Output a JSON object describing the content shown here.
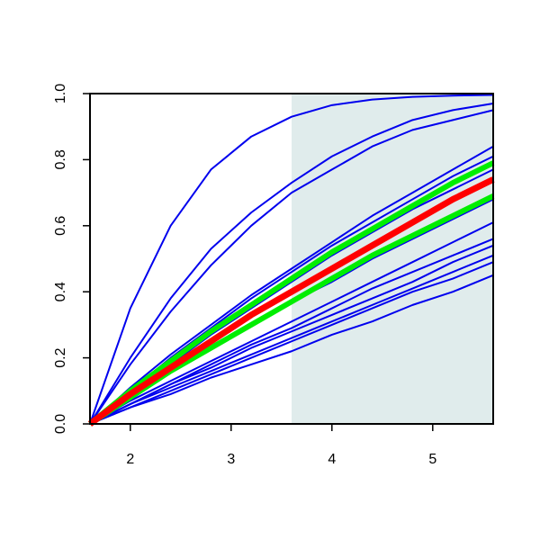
{
  "chart_data": {
    "type": "line",
    "x": [
      1.6,
      2.0,
      2.4,
      2.8,
      3.2,
      3.6,
      4.0,
      4.4,
      4.8,
      5.2,
      5.6
    ],
    "xlim": [
      1.6,
      5.6
    ],
    "ylim": [
      0,
      1
    ],
    "xticks": [
      2,
      3,
      4,
      5
    ],
    "yticks": [
      {
        "value": 0,
        "label": "0.0"
      },
      0.2,
      0.4,
      0.6,
      0.8,
      {
        "value": 1,
        "label": "1.0"
      }
    ],
    "shaded_x": [
      3.6,
      5.6
    ],
    "shade_color": "#e0ecec",
    "series": [
      {
        "color": "#0000ee",
        "line_width": 2,
        "values": [
          0,
          0.35,
          0.6,
          0.77,
          0.87,
          0.93,
          0.965,
          0.982,
          0.99,
          0.994,
          0.996
        ]
      },
      {
        "color": "#0000ee",
        "line_width": 2,
        "values": [
          0,
          0.2,
          0.38,
          0.53,
          0.64,
          0.73,
          0.81,
          0.87,
          0.92,
          0.95,
          0.97
        ]
      },
      {
        "color": "#0000ee",
        "line_width": 2,
        "values": [
          0,
          0.18,
          0.34,
          0.48,
          0.6,
          0.7,
          0.77,
          0.84,
          0.89,
          0.92,
          0.95
        ]
      },
      {
        "color": "#0000ee",
        "line_width": 2,
        "values": [
          0,
          0.11,
          0.21,
          0.3,
          0.39,
          0.47,
          0.55,
          0.63,
          0.7,
          0.77,
          0.84
        ]
      },
      {
        "color": "#0000ee",
        "line_width": 2,
        "values": [
          0,
          0.1,
          0.2,
          0.29,
          0.38,
          0.46,
          0.54,
          0.61,
          0.68,
          0.75,
          0.81
        ]
      },
      {
        "color": "#0000ee",
        "line_width": 2,
        "values": [
          0,
          0.09,
          0.18,
          0.27,
          0.35,
          0.43,
          0.51,
          0.58,
          0.65,
          0.71,
          0.77
        ]
      },
      {
        "color": "#0000ee",
        "line_width": 2,
        "values": [
          0,
          0.08,
          0.16,
          0.23,
          0.3,
          0.37,
          0.43,
          0.5,
          0.56,
          0.62,
          0.68
        ]
      },
      {
        "color": "#0000ee",
        "line_width": 2,
        "values": [
          0,
          0.07,
          0.13,
          0.19,
          0.25,
          0.31,
          0.37,
          0.43,
          0.49,
          0.55,
          0.61
        ]
      },
      {
        "color": "#0000ee",
        "line_width": 2,
        "values": [
          0,
          0.06,
          0.12,
          0.18,
          0.24,
          0.29,
          0.35,
          0.41,
          0.46,
          0.51,
          0.56
        ]
      },
      {
        "color": "#0000ee",
        "line_width": 2,
        "values": [
          0,
          0.06,
          0.12,
          0.17,
          0.23,
          0.28,
          0.33,
          0.38,
          0.43,
          0.49,
          0.54
        ]
      },
      {
        "color": "#0000ee",
        "line_width": 2,
        "values": [
          0,
          0.06,
          0.11,
          0.16,
          0.21,
          0.26,
          0.31,
          0.36,
          0.41,
          0.46,
          0.51
        ]
      },
      {
        "color": "#0000ee",
        "line_width": 2,
        "values": [
          0,
          0.05,
          0.1,
          0.15,
          0.2,
          0.25,
          0.3,
          0.35,
          0.4,
          0.44,
          0.49
        ]
      },
      {
        "color": "#0000ee",
        "line_width": 2,
        "values": [
          0,
          0.05,
          0.09,
          0.14,
          0.18,
          0.22,
          0.27,
          0.31,
          0.36,
          0.4,
          0.45
        ]
      },
      {
        "color": "#00ee00",
        "line_width": 6,
        "values": [
          0,
          0.1,
          0.19,
          0.28,
          0.36,
          0.44,
          0.52,
          0.59,
          0.66,
          0.73,
          0.79
        ]
      },
      {
        "color": "#00ee00",
        "line_width": 6,
        "values": [
          0,
          0.08,
          0.16,
          0.23,
          0.3,
          0.37,
          0.44,
          0.51,
          0.57,
          0.63,
          0.69
        ]
      },
      {
        "color": "#ff0000",
        "line_width": 7,
        "values": [
          0,
          0.09,
          0.17,
          0.25,
          0.33,
          0.4,
          0.47,
          0.54,
          0.61,
          0.68,
          0.74
        ]
      }
    ]
  }
}
